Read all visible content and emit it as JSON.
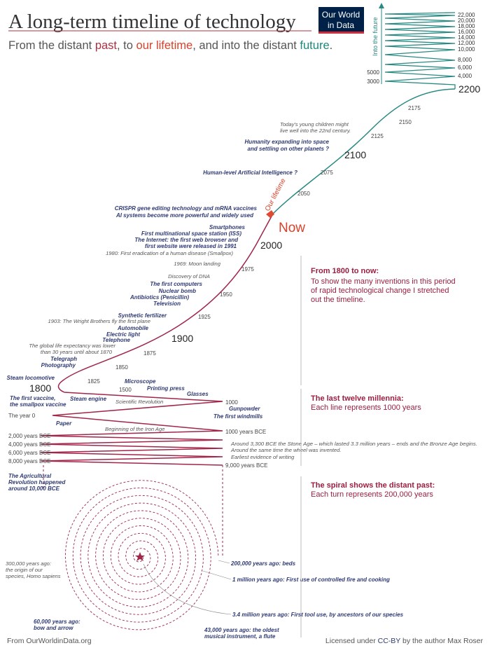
{
  "header": {
    "title": "A long-term timeline of technology",
    "subtitle": {
      "a": "From the distant ",
      "past": "past",
      "b": ", to ",
      "lifetime": "our lifetime",
      "c": ", and into the distant ",
      "future": "future",
      "d": "."
    },
    "logo": [
      "Our World",
      "in Data"
    ]
  },
  "future": {
    "axis_label": "Into the future",
    "ticks": [
      "22,000",
      "20,000",
      "18,000",
      "16,000",
      "14,000",
      "12,000",
      "10,000",
      "8,000",
      "6,000",
      "4,000"
    ],
    "left_ticks": [
      "5000",
      "3000"
    ],
    "end": "2200"
  },
  "years": [
    "2175",
    "2150",
    "2125",
    "2100",
    "2075",
    "2050",
    "Now",
    "2000",
    "1975",
    "1950",
    "1925",
    "1900",
    "1875",
    "1850",
    "1825",
    "1800",
    "1500",
    "1000",
    "The year 0",
    "1000 years BCE",
    "2,000 years BCE",
    "4,000 years BCE",
    "6,000 years BCE",
    "8,000 years BCE",
    "9,000 years BCE"
  ],
  "lifetime_label": "Our lifetime",
  "events": [
    [
      "Today's young children might",
      "live well into the 22nd century."
    ],
    [
      "Humanity expanding into space",
      "and settling on other planets ?"
    ],
    "Human-level Artificial Intelligence ?",
    "CRISPR gene editing technology and mRNA vaccines",
    "AI systems become more powerful and widely used",
    "Smartphones",
    "First multinational space station (ISS)",
    [
      "The Internet: the first web browser and",
      "first website were released in 1991"
    ],
    "1980: First eradication of a human disease (Smallpox)",
    "1969: Moon landing",
    "Discovery of DNA",
    "The first computers",
    "Nuclear bomb",
    "Antibiotics (Penicillin)",
    "Television",
    "Synthetic fertilizer",
    "1903: The Wright Brothers fly the first plane",
    "Automobile",
    "Electric light",
    "Telephone",
    [
      "The global life expectancy was lower",
      "than 30 years until about 1870"
    ],
    "Telegraph",
    "Photography",
    "Steam locomotive",
    [
      "The first vaccine,",
      "the smallpox vaccine"
    ],
    "Steam engine",
    "Microscope",
    "Printing press",
    "Scientific Revolution",
    "Glasses",
    "Gunpowder",
    "The first windmills",
    "Paper",
    "Beginning of the Iron Age",
    [
      "Around 3,300 BCE the Stone Age – which lasted 3.3 million years – ends and the Bronze Age begins.",
      "Around the same time the wheel was invented."
    ],
    "Earliest evidence of writing",
    [
      "The Agricultural",
      "Revolution happened",
      "around 10,000 BCE"
    ]
  ],
  "spiral_events": [
    [
      "300,000 years ago:",
      "the origin of our",
      "species, Homo sapiens"
    ],
    "200,000 years ago: beds",
    "1 million years ago: First use of controlled fire and cooking",
    "3.4 million years ago: First tool use, by ancestors of our species",
    [
      "60,000 years ago:",
      "bow and arrow"
    ],
    [
      "43,000 years ago: the oldest",
      "musical instrument, a flute"
    ]
  ],
  "sections": [
    {
      "heading": "From 1800 to now:",
      "body": [
        "To show the many inventions in this period",
        "of rapid technological change I stretched",
        "out the timeline."
      ]
    },
    {
      "heading": "The last twelve millennia:",
      "body": [
        "Each line represents 1000 years"
      ]
    },
    {
      "heading": "The spiral shows the distant past:",
      "body": [
        "Each turn represents 200,000 years"
      ]
    }
  ],
  "footer": {
    "source": "From OurWorldinData.org",
    "license": {
      "a": "Licensed under ",
      "link": "CC-BY",
      "b": " by the author Max Roser"
    }
  }
}
